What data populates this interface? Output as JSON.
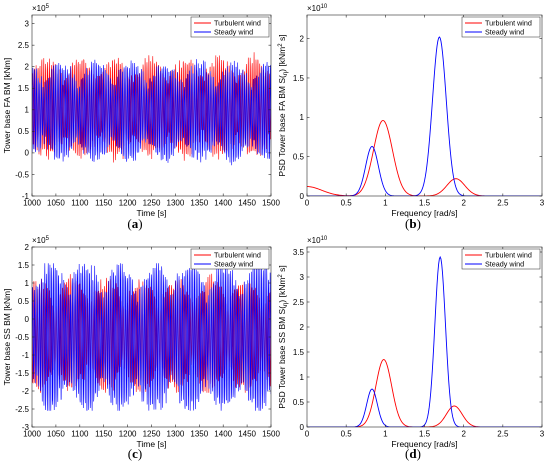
{
  "chart_data": [
    {
      "id": "a",
      "type": "line",
      "caption": "a",
      "xlabel": "Time [s]",
      "ylabel": "Tower base FA BM [kNm]",
      "exponent_label": "10",
      "exponent_power": "5",
      "exponent_prefix": "×",
      "xlim": [
        1000,
        1500
      ],
      "ylim": [
        -1.0,
        3.2
      ],
      "xticks": [
        "1000",
        "1050",
        "1100",
        "1150",
        "1200",
        "1250",
        "1300",
        "1350",
        "1400",
        "1450",
        "1500"
      ],
      "yticks": [
        "-1",
        "-0.5",
        "0",
        "0.5",
        "1",
        "1.5",
        "2",
        "2.5",
        "3"
      ],
      "legend_position": "top-right",
      "series": [
        {
          "name": "Turbulent wind",
          "color": "#ff0000",
          "x_range": [
            1000,
            1500
          ],
          "samples": 1400,
          "period": 4.0,
          "center": 1.05,
          "amplitude": 1.1,
          "range": [
            -0.55,
            2.95
          ]
        },
        {
          "name": "Steady wind",
          "color": "#0000ff",
          "x_range": [
            1000,
            1500
          ],
          "samples": 1400,
          "period": 3.6,
          "center": 0.95,
          "amplitude": 1.1,
          "range": [
            -0.65,
            2.65
          ]
        }
      ]
    },
    {
      "id": "b",
      "type": "line",
      "caption": "b",
      "xlabel": "Frequency [rad/s]",
      "ylabel_prefix": "PSD Tower base FA BM S(",
      "ylabel_sub": "η",
      "ylabel_mid": ") [kNm",
      "ylabel_sup": "2",
      "ylabel_suffix": " s]",
      "exponent_label": "10",
      "exponent_power": "10",
      "exponent_prefix": "×",
      "xlim": [
        0,
        3
      ],
      "ylim": [
        0,
        2.3
      ],
      "xticks": [
        "0",
        "0.5",
        "1",
        "1.5",
        "2",
        "2.5",
        "3"
      ],
      "yticks": [
        "0",
        "0.5",
        "1",
        "1.5",
        "2"
      ],
      "legend_position": "top-right",
      "series": [
        {
          "name": "Turbulent wind",
          "color": "#ff0000",
          "peaks": [
            {
              "at": 0.0,
              "height": 0.12,
              "width": 0.28
            },
            {
              "at": 0.97,
              "height": 0.96,
              "width": 0.18
            },
            {
              "at": 1.9,
              "height": 0.22,
              "width": 0.17
            }
          ]
        },
        {
          "name": "Steady wind",
          "color": "#0000ff",
          "peaks": [
            {
              "at": 0.83,
              "height": 0.63,
              "width": 0.12
            },
            {
              "at": 1.69,
              "height": 2.02,
              "width": 0.13
            }
          ]
        }
      ]
    },
    {
      "id": "c",
      "type": "line",
      "caption": "c",
      "xlabel": "Time [s]",
      "ylabel": "Tower base SS BM [kNm]",
      "exponent_label": "10",
      "exponent_power": "5",
      "exponent_prefix": "×",
      "xlim": [
        1000,
        1500
      ],
      "ylim": [
        -3.0,
        2.0
      ],
      "xticks": [
        "1000",
        "1050",
        "1100",
        "1150",
        "1200",
        "1250",
        "1300",
        "1350",
        "1400",
        "1450",
        "1500"
      ],
      "yticks": [
        "-3",
        "-2.5",
        "-2",
        "-1.5",
        "-1",
        "-0.5",
        "0",
        "0.5",
        "1",
        "1.5",
        "2"
      ],
      "legend_position": "top-right",
      "series": [
        {
          "name": "Turbulent wind",
          "color": "#ff0000",
          "x_range": [
            1000,
            1500
          ],
          "samples": 1400,
          "period": 4.0,
          "center": -0.45,
          "amplitude": 1.5,
          "range": [
            -2.05,
            1.35
          ]
        },
        {
          "name": "Steady wind",
          "color": "#0000ff",
          "x_range": [
            1000,
            1500
          ],
          "samples": 1400,
          "period": 3.6,
          "center": -0.5,
          "amplitude": 2.0,
          "range": [
            -2.55,
            1.55
          ]
        }
      ]
    },
    {
      "id": "d",
      "type": "line",
      "caption": "d",
      "xlabel": "Frequency [rad/s]",
      "ylabel_prefix": "PSD Tower base SS BM S(",
      "ylabel_sub": "η",
      "ylabel_mid": ") [kNm",
      "ylabel_sup": "2",
      "ylabel_suffix": " s]",
      "exponent_label": "10",
      "exponent_power": "10",
      "exponent_prefix": "×",
      "xlim": [
        0,
        3
      ],
      "ylim": [
        0,
        3.6
      ],
      "xticks": [
        "0",
        "0.5",
        "1",
        "1.5",
        "2",
        "2.5",
        "3"
      ],
      "yticks": [
        "0",
        "0.5",
        "1",
        "1.5",
        "2",
        "2.5",
        "3",
        "3.5"
      ],
      "legend_position": "top-right",
      "series": [
        {
          "name": "Turbulent wind",
          "color": "#ff0000",
          "peaks": [
            {
              "at": 0.98,
              "height": 1.35,
              "width": 0.15
            },
            {
              "at": 1.88,
              "height": 0.42,
              "width": 0.15
            }
          ]
        },
        {
          "name": "Steady wind",
          "color": "#0000ff",
          "peaks": [
            {
              "at": 0.83,
              "height": 0.76,
              "width": 0.1
            },
            {
              "at": 1.7,
              "height": 3.4,
              "width": 0.1
            }
          ]
        }
      ]
    }
  ],
  "captions": {
    "open": "(",
    "close": ")"
  }
}
